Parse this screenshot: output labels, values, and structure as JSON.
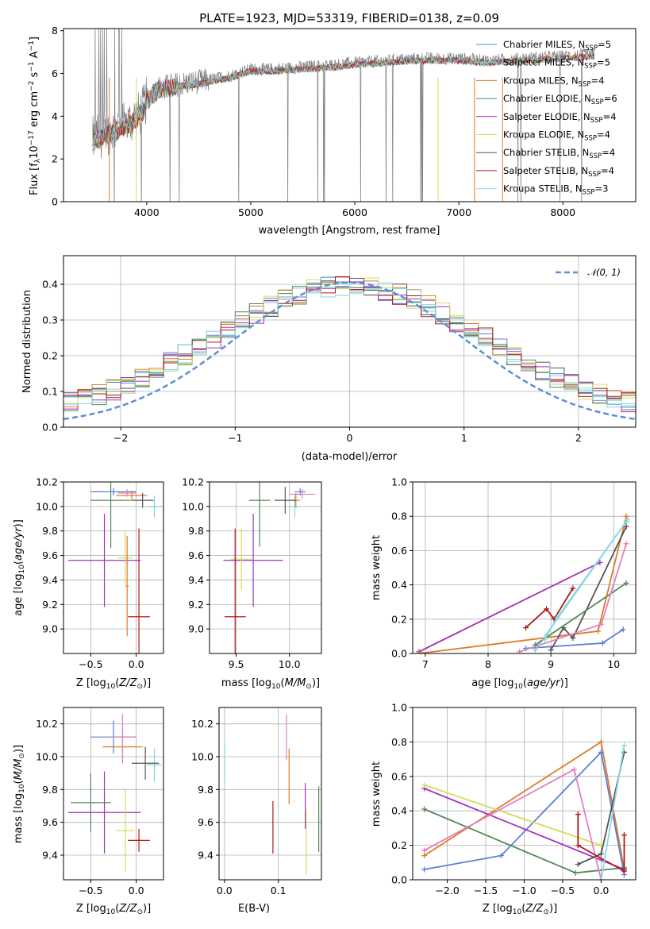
{
  "title": "PLATE=1923, MJD=53319, FIBERID=0138, z=0.09",
  "colors": {
    "chabrier_miles": "#5b7fd6",
    "salpeter_miles": "#7dd3e6",
    "kroupa_miles": "#e07b28",
    "chabrier_elodie": "#55885a",
    "salpeter_elodie": "#a332b9",
    "kroupa_elodie": "#d6dc5a",
    "chabrier_stelib": "#555555",
    "salpeter_stelib": "#b01818",
    "kroupa_stelib": "#86dbe2",
    "pink": "#e27fbf",
    "data": "#808080"
  },
  "legend_models": [
    {
      "label": "Chabrier MILES, N_SSP=5",
      "base": "Chabrier MILES, N",
      "sub": "SSP",
      "tail": "=5",
      "color_key": "chabrier_miles"
    },
    {
      "label": "Salpeter MILES, N_SSP=5",
      "base": "Salpeter MILES, N",
      "sub": "SSP",
      "tail": "=5",
      "color_key": "salpeter_miles"
    },
    {
      "label": "Kroupa MILES, N_SSP=4",
      "base": "Kroupa MILES, N",
      "sub": "SSP",
      "tail": "=4",
      "color_key": "kroupa_miles"
    },
    {
      "label": "Chabrier ELODIE, N_SSP=6",
      "base": "Chabrier ELODIE, N",
      "sub": "SSP",
      "tail": "=6",
      "color_key": "chabrier_elodie"
    },
    {
      "label": "Salpeter ELODIE, N_SSP=4",
      "base": "Salpeter ELODIE, N",
      "sub": "SSP",
      "tail": "=4",
      "color_key": "salpeter_elodie"
    },
    {
      "label": "Kroupa ELODIE, N_SSP=4",
      "base": "Kroupa ELODIE, N",
      "sub": "SSP",
      "tail": "=4",
      "color_key": "kroupa_elodie"
    },
    {
      "label": "Chabrier STELIB, N_SSP=4",
      "base": "Chabrier STELIB, N",
      "sub": "SSP",
      "tail": "=4",
      "color_key": "chabrier_stelib"
    },
    {
      "label": "Salpeter STELIB, N_SSP=4",
      "base": "Salpeter STELIB, N",
      "sub": "SSP",
      "tail": "=4",
      "color_key": "salpeter_stelib"
    },
    {
      "label": "Kroupa STELIB, N_SSP=3",
      "base": "Kroupa STELIB, N",
      "sub": "SSP",
      "tail": "=3",
      "color_key": "kroupa_stelib"
    }
  ],
  "chart_data": [
    {
      "id": "spectrum",
      "type": "line",
      "xlabel": "wavelength [Angstrom, rest frame]",
      "ylabel": "Flux [f_λ 10^-17 erg cm^-2 s^-1 A^-1]",
      "xlim": [
        3200,
        8700
      ],
      "ylim": [
        0,
        8.1
      ],
      "xticks": [
        4000,
        5000,
        6000,
        7000,
        8000
      ],
      "yticks": [
        0,
        2,
        4,
        6,
        8
      ],
      "continuum": [
        [
          3480,
          2.9
        ],
        [
          3650,
          3.3
        ],
        [
          3800,
          3.6
        ],
        [
          3950,
          4.2
        ],
        [
          4000,
          4.8
        ],
        [
          4100,
          5.3
        ],
        [
          4300,
          5.5
        ],
        [
          4500,
          5.6
        ],
        [
          4800,
          5.9
        ],
        [
          5000,
          6.2
        ],
        [
          5200,
          6.2
        ],
        [
          5500,
          6.3
        ],
        [
          5800,
          6.4
        ],
        [
          6000,
          6.5
        ],
        [
          6300,
          6.6
        ],
        [
          6600,
          6.7
        ],
        [
          7000,
          6.7
        ],
        [
          7300,
          6.6
        ],
        [
          7600,
          6.7
        ],
        [
          8000,
          6.8
        ],
        [
          8300,
          6.9
        ]
      ],
      "series_wavelength_range": [
        3480,
        8300
      ]
    },
    {
      "id": "residuals",
      "type": "bar",
      "xlabel": "(data-model)/error",
      "ylabel": "Normed distribution",
      "xlim": [
        -2.5,
        2.5
      ],
      "ylim": [
        0,
        0.48
      ],
      "xticks": [
        -2,
        -1,
        0,
        1,
        2
      ],
      "yticks": [
        0.0,
        0.1,
        0.2,
        0.3,
        0.4
      ],
      "legend_label": "N(0,1)",
      "bin_width": 0.125,
      "bin_start": -2.5
    },
    {
      "id": "age_vs_Z",
      "type": "scatter",
      "xlabel": "Z [log10(Z/Z⊙)]",
      "ylabel": "age  [log10(age/yr)]",
      "xlim": [
        -0.8,
        0.3
      ],
      "ylim": [
        8.8,
        10.2
      ],
      "xticks": [
        -0.5,
        0.0
      ],
      "yticks": [
        9.0,
        9.2,
        9.4,
        9.6,
        9.8,
        10.0,
        10.2
      ],
      "points": [
        {
          "x": -0.25,
          "y": 10.12,
          "xerr": 0.25,
          "yerr": 0.03,
          "color_key": "chabrier_miles"
        },
        {
          "x": 0.2,
          "y": 10.0,
          "xerr": 0.08,
          "yerr": 0.09,
          "color_key": "salpeter_miles"
        },
        {
          "x": -0.05,
          "y": 10.09,
          "xerr": 0.17,
          "yerr": 0.04,
          "color_key": "kroupa_miles"
        },
        {
          "x": -0.28,
          "y": 10.05,
          "xerr": 0.22,
          "yerr": 0.39,
          "color_key": "chabrier_elodie"
        },
        {
          "x": -0.35,
          "y": 9.56,
          "xerr": 0.4,
          "yerr": 0.38,
          "color_key": "salpeter_elodie"
        },
        {
          "x": -0.12,
          "y": 9.58,
          "xerr": 0.08,
          "yerr": 0.22,
          "color_key": "kroupa_elodie"
        },
        {
          "x": 0.07,
          "y": 10.05,
          "xerr": 0.12,
          "yerr": 0.06,
          "color_key": "chabrier_stelib"
        },
        {
          "x": 0.03,
          "y": 9.1,
          "xerr": 0.12,
          "yerr": 0.72,
          "color_key": "salpeter_stelib"
        },
        {
          "x": -0.1,
          "y": 10.11,
          "xerr": 0.1,
          "yerr": 0.03,
          "color_key": "pink"
        },
        {
          "x": -0.1,
          "y": 9.35,
          "xerr": 0.02,
          "yerr": 0.41,
          "color_key": "kroupa_miles"
        }
      ]
    },
    {
      "id": "age_vs_mass",
      "type": "scatter",
      "xlabel": "mass [log10(M/M⊙)]",
      "ylabel": "",
      "xlim": [
        9.25,
        10.3
      ],
      "ylim": [
        8.8,
        10.2
      ],
      "xticks": [
        9.5,
        10.0
      ],
      "yticks": [
        9.0,
        9.2,
        9.4,
        9.6,
        9.8,
        10.0,
        10.2
      ],
      "points": [
        {
          "x": 10.1,
          "y": 10.12,
          "xerr": 0.05,
          "yerr": 0.03,
          "color_key": "chabrier_miles"
        },
        {
          "x": 10.05,
          "y": 10.0,
          "xerr": 0.05,
          "yerr": 0.09,
          "color_key": "salpeter_miles"
        },
        {
          "x": 10.06,
          "y": 10.05,
          "xerr": 0.04,
          "yerr": 0.06,
          "color_key": "kroupa_miles"
        },
        {
          "x": 9.72,
          "y": 10.05,
          "xerr": 0.1,
          "yerr": 0.38,
          "color_key": "chabrier_elodie"
        },
        {
          "x": 9.66,
          "y": 9.56,
          "xerr": 0.28,
          "yerr": 0.38,
          "color_key": "salpeter_elodie"
        },
        {
          "x": 9.55,
          "y": 9.57,
          "xerr": 0.1,
          "yerr": 0.25,
          "color_key": "kroupa_elodie"
        },
        {
          "x": 9.96,
          "y": 10.05,
          "xerr": 0.1,
          "yerr": 0.11,
          "color_key": "chabrier_stelib"
        },
        {
          "x": 9.49,
          "y": 9.1,
          "xerr": 0.1,
          "yerr": 0.72,
          "color_key": "salpeter_stelib"
        },
        {
          "x": 10.12,
          "y": 10.1,
          "xerr": 0.12,
          "yerr": 0.04,
          "color_key": "pink"
        }
      ]
    },
    {
      "id": "weight_vs_age",
      "type": "line",
      "xlabel": "age  [log10(age/yr)]",
      "ylabel": "mass weight",
      "xlim": [
        6.8,
        10.35
      ],
      "ylim": [
        0,
        1.0
      ],
      "xticks": [
        7,
        8,
        9,
        10
      ],
      "yticks": [
        0.0,
        0.2,
        0.4,
        0.6,
        0.8,
        1.0
      ],
      "series": [
        {
          "color_key": "salpeter_stelib",
          "x": [
            8.6,
            8.93,
            9.05,
            9.35
          ],
          "y": [
            0.15,
            0.26,
            0.2,
            0.38
          ]
        },
        {
          "color_key": "kroupa_elodie",
          "x": [
            6.9,
            9.78
          ],
          "y": [
            0.01,
            0.53
          ]
        },
        {
          "color_key": "salpeter_elodie",
          "x": [
            6.9,
            9.78
          ],
          "y": [
            0.01,
            0.53
          ]
        },
        {
          "color_key": "kroupa_miles",
          "x": [
            6.9,
            9.75,
            10.2
          ],
          "y": [
            0.0,
            0.13,
            0.8
          ]
        },
        {
          "color_key": "chabrier_miles",
          "x": [
            8.6,
            9.82,
            10.15
          ],
          "y": [
            0.03,
            0.06,
            0.14
          ]
        },
        {
          "color_key": "salpeter_miles",
          "x": [
            8.75,
            10.2
          ],
          "y": [
            0.02,
            0.77
          ]
        },
        {
          "color_key": "chabrier_stelib",
          "x": [
            9.0,
            9.2,
            9.35,
            10.2
          ],
          "y": [
            0.02,
            0.15,
            0.09,
            0.74
          ]
        },
        {
          "color_key": "chabrier_elodie",
          "x": [
            8.75,
            10.2
          ],
          "y": [
            0.05,
            0.41
          ]
        },
        {
          "color_key": "pink",
          "x": [
            8.5,
            9.8,
            10.2
          ],
          "y": [
            0.01,
            0.17,
            0.64
          ]
        },
        {
          "color_key": "kroupa_stelib",
          "x": [
            8.9,
            9.1,
            10.22
          ],
          "y": [
            0.08,
            0.21,
            0.78
          ]
        }
      ]
    },
    {
      "id": "mass_vs_Z",
      "type": "scatter",
      "xlabel": "Z [log10(Z/Z⊙)]",
      "ylabel": "mass [log10(M/M⊙)]",
      "xlim": [
        -0.8,
        0.3
      ],
      "ylim": [
        9.25,
        10.3
      ],
      "xticks": [
        -0.5,
        0.0
      ],
      "yticks": [
        9.4,
        9.6,
        9.8,
        10.0,
        10.2
      ],
      "points": [
        {
          "x": -0.25,
          "y": 10.12,
          "xerr": 0.25,
          "yerr": 0.1,
          "color_key": "chabrier_miles"
        },
        {
          "x": 0.2,
          "y": 9.95,
          "xerr": 0.08,
          "yerr": 0.1,
          "color_key": "salpeter_miles"
        },
        {
          "x": -0.15,
          "y": 10.06,
          "xerr": 0.22,
          "yerr": 0.1,
          "color_key": "kroupa_miles"
        },
        {
          "x": -0.5,
          "y": 9.72,
          "xerr": 0.22,
          "yerr": 0.18,
          "color_key": "chabrier_elodie"
        },
        {
          "x": -0.35,
          "y": 9.66,
          "xerr": 0.4,
          "yerr": 0.25,
          "color_key": "salpeter_elodie"
        },
        {
          "x": -0.12,
          "y": 9.55,
          "xerr": 0.1,
          "yerr": 0.25,
          "color_key": "kroupa_elodie"
        },
        {
          "x": 0.1,
          "y": 9.96,
          "xerr": 0.15,
          "yerr": 0.1,
          "color_key": "chabrier_stelib"
        },
        {
          "x": 0.03,
          "y": 9.49,
          "xerr": 0.12,
          "yerr": 0.07,
          "color_key": "salpeter_stelib"
        },
        {
          "x": -0.15,
          "y": 10.12,
          "xerr": 0.15,
          "yerr": 0.14,
          "color_key": "pink"
        }
      ]
    },
    {
      "id": "mass_vs_ebv",
      "type": "scatter",
      "xlabel": "E(B-V)",
      "ylabel": "",
      "xlim": [
        -0.01,
        0.18
      ],
      "ylim": [
        9.25,
        10.3
      ],
      "xticks": [
        0.0,
        0.1
      ],
      "yticks": [
        9.4,
        9.6,
        9.8,
        10.0,
        10.2
      ],
      "points": [
        {
          "x": 0.0,
          "y": 9.96,
          "yerr": 0.12,
          "color_key": "kroupa_stelib"
        },
        {
          "x": 0.115,
          "y": 10.12,
          "yerr": 0.14,
          "color_key": "pink"
        },
        {
          "x": 0.12,
          "y": 9.88,
          "yerr": 0.17,
          "color_key": "kroupa_miles"
        },
        {
          "x": 0.09,
          "y": 9.57,
          "yerr": 0.16,
          "color_key": "salpeter_stelib"
        },
        {
          "x": 0.15,
          "y": 9.7,
          "yerr": 0.14,
          "color_key": "salpeter_elodie"
        },
        {
          "x": 0.152,
          "y": 9.48,
          "yerr": 0.2,
          "color_key": "kroupa_elodie"
        },
        {
          "x": 0.175,
          "y": 9.62,
          "yerr": 0.2,
          "color_key": "chabrier_elodie"
        }
      ]
    },
    {
      "id": "weight_vs_Z",
      "type": "line",
      "xlabel": "Z [log10(Z/Z⊙)]",
      "ylabel": "mass weight",
      "xlim": [
        -2.45,
        0.45
      ],
      "ylim": [
        0,
        1.0
      ],
      "xticks": [
        -2.0,
        -1.5,
        -1.0,
        -0.5,
        0.0
      ],
      "yticks": [
        0.0,
        0.2,
        0.4,
        0.6,
        0.8,
        1.0
      ],
      "series": [
        {
          "color_key": "kroupa_miles",
          "x": [
            -2.3,
            0.0,
            0.3
          ],
          "y": [
            0.14,
            0.8,
            0.06
          ]
        },
        {
          "color_key": "chabrier_miles",
          "x": [
            -2.3,
            -1.3,
            0.0,
            0.3
          ],
          "y": [
            0.06,
            0.14,
            0.74,
            0.03
          ]
        },
        {
          "color_key": "chabrier_elodie",
          "x": [
            -2.3,
            -0.33,
            0.3
          ],
          "y": [
            0.41,
            0.04,
            0.07
          ]
        },
        {
          "color_key": "salpeter_elodie",
          "x": [
            -2.3,
            0.3
          ],
          "y": [
            0.53,
            0.06
          ]
        },
        {
          "color_key": "kroupa_elodie",
          "x": [
            -2.3,
            0.0
          ],
          "y": [
            0.55,
            0.2
          ]
        },
        {
          "color_key": "pink",
          "x": [
            -2.3,
            -0.35,
            0.0
          ],
          "y": [
            0.17,
            0.64,
            0.0
          ]
        },
        {
          "color_key": "chabrier_stelib",
          "x": [
            -0.3,
            0.0,
            0.3
          ],
          "y": [
            0.09,
            0.15,
            0.74
          ]
        },
        {
          "color_key": "salpeter_stelib",
          "x": [
            -0.3,
            -0.3,
            0.3,
            0.3
          ],
          "y": [
            0.38,
            0.2,
            0.05,
            0.26
          ]
        },
        {
          "color_key": "kroupa_stelib",
          "x": [
            0.0,
            0.3
          ],
          "y": [
            0.0,
            0.78
          ]
        }
      ]
    }
  ]
}
